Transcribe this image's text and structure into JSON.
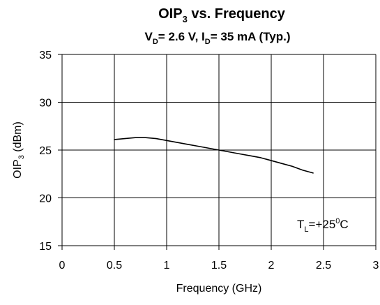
{
  "chart_data": {
    "type": "line",
    "title": {
      "base": "OIP",
      "sub": "3",
      "rest": " vs. Frequency"
    },
    "subtitle": {
      "vd_base": "V",
      "vd_sub": "D",
      "vd_rest": "= 2.6 V, I",
      "id_sub": "D",
      "id_rest": "= 35 mA (Typ.)"
    },
    "xlabel": "Frequency (GHz)",
    "ylabel": {
      "base": "OIP",
      "sub": "3",
      "rest": " (dBm)"
    },
    "annotation": {
      "base": "T",
      "sub": "L",
      "mid": "=+25",
      "sup": "0",
      "rest": "C"
    },
    "xlim": [
      0,
      3
    ],
    "ylim": [
      15,
      35
    ],
    "xticks": [
      "0",
      "0.5",
      "1",
      "1.5",
      "2",
      "2.5",
      "3"
    ],
    "yticks": [
      "15",
      "20",
      "25",
      "30",
      "35"
    ],
    "grid": true,
    "series": [
      {
        "x": [
          0.5,
          0.6,
          0.7,
          0.8,
          0.9,
          1.0,
          1.1,
          1.2,
          1.3,
          1.4,
          1.5,
          1.6,
          1.7,
          1.8,
          1.9,
          2.0,
          2.1,
          2.2,
          2.3,
          2.4
        ],
        "y": [
          26.1,
          26.2,
          26.3,
          26.3,
          26.2,
          26.0,
          25.8,
          25.6,
          25.4,
          25.2,
          25.0,
          24.8,
          24.6,
          24.4,
          24.2,
          23.9,
          23.6,
          23.3,
          22.9,
          22.6
        ]
      }
    ]
  }
}
